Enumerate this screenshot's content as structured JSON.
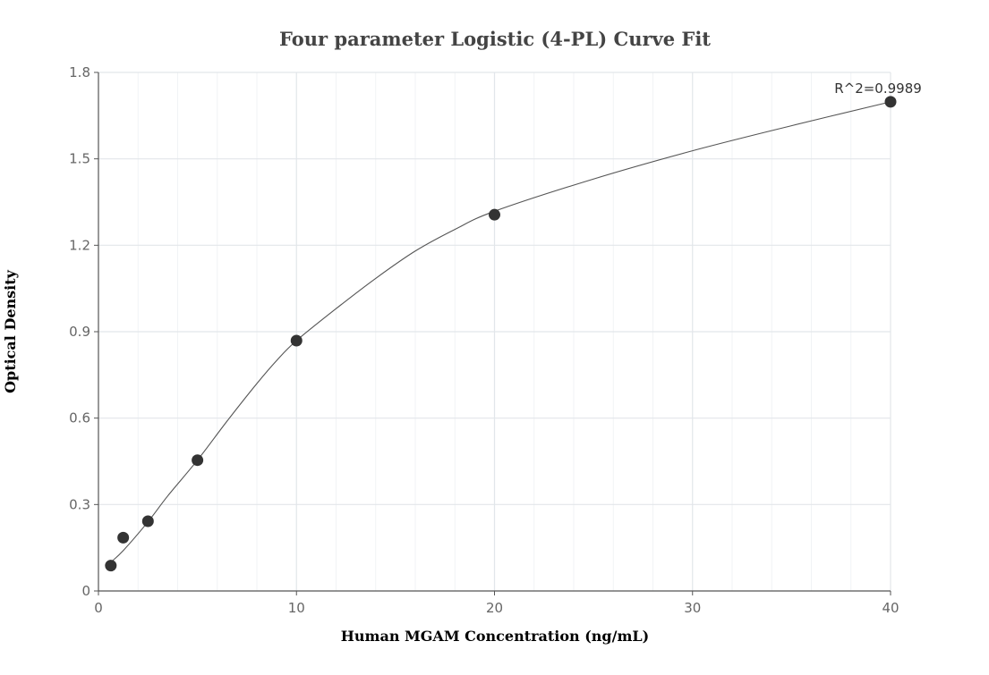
{
  "chart_data": {
    "type": "scatter",
    "title": "Four parameter Logistic (4-PL) Curve Fit",
    "xlabel": "Human MGAM Concentration (ng/mL)",
    "ylabel": "Optical Density",
    "xlim": [
      0,
      40
    ],
    "ylim": [
      0,
      1.8
    ],
    "x_ticks": [
      0,
      10,
      20,
      30,
      40
    ],
    "y_ticks": [
      0,
      0.3,
      0.6,
      0.9,
      1.2,
      1.5,
      1.8
    ],
    "x_tick_labels": [
      "0",
      "10",
      "20",
      "30",
      "40"
    ],
    "y_tick_labels": [
      "0",
      "0.3",
      "0.6",
      "0.9",
      "1.2",
      "1.5",
      "1.8"
    ],
    "grid": true,
    "points": [
      {
        "x": 0.625,
        "y": 0.088
      },
      {
        "x": 1.25,
        "y": 0.185
      },
      {
        "x": 2.5,
        "y": 0.242
      },
      {
        "x": 5,
        "y": 0.454
      },
      {
        "x": 10,
        "y": 0.869
      },
      {
        "x": 20,
        "y": 1.306
      },
      {
        "x": 40,
        "y": 1.698
      }
    ],
    "fit": {
      "type": "4-PL",
      "curve": [
        [
          0.625,
          0.1
        ],
        [
          1.25,
          0.14
        ],
        [
          2.5,
          0.24
        ],
        [
          3.5,
          0.33
        ],
        [
          5,
          0.454
        ],
        [
          6.5,
          0.59
        ],
        [
          8,
          0.72
        ],
        [
          9,
          0.8
        ],
        [
          10,
          0.869
        ],
        [
          12,
          0.98
        ],
        [
          14,
          1.085
        ],
        [
          16,
          1.18
        ],
        [
          18,
          1.255
        ],
        [
          20,
          1.318
        ],
        [
          25,
          1.43
        ],
        [
          30,
          1.528
        ],
        [
          35,
          1.615
        ],
        [
          40,
          1.698
        ]
      ]
    },
    "annotation": "R^2=0.9989"
  }
}
